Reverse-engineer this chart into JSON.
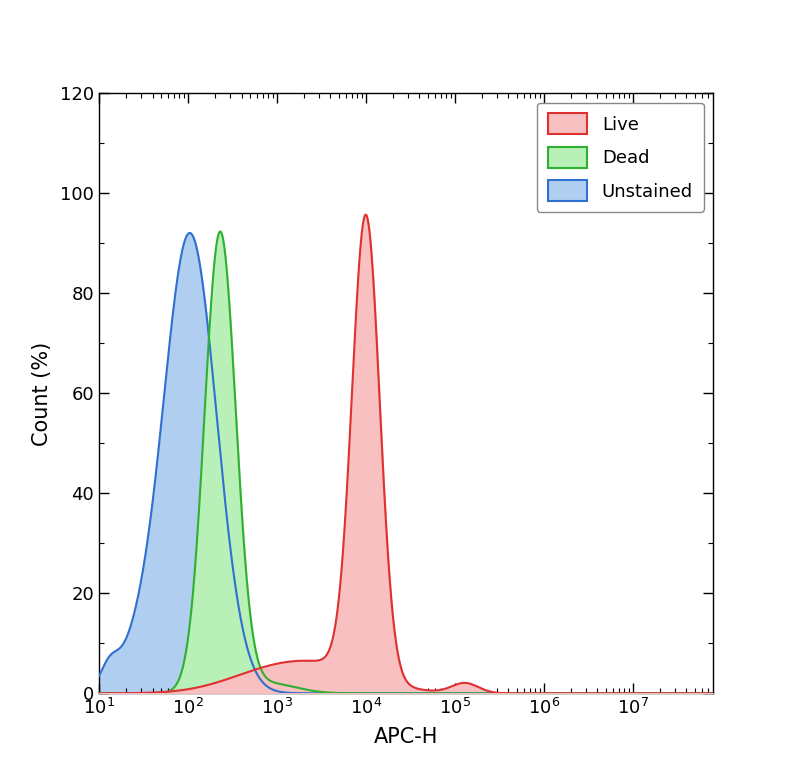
{
  "xlabel": "APC-H",
  "ylabel": "Count (%)",
  "ylim": [
    0,
    120
  ],
  "yticks": [
    0,
    20,
    40,
    60,
    80,
    100,
    120
  ],
  "live_color": "#e03030",
  "dead_color": "#30b030",
  "unstained_color": "#3070d0",
  "live_fill": "#f8c0c0",
  "dead_fill": "#b8f0b8",
  "unstained_fill": "#b0cef0",
  "background_color": "#ffffff",
  "legend_labels": [
    "Live",
    "Dead",
    "Unstained"
  ]
}
